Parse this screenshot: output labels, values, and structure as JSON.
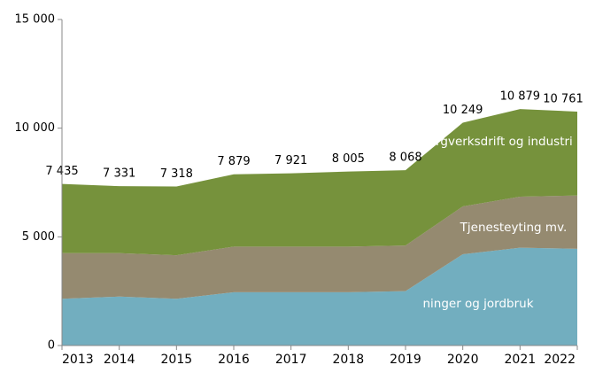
{
  "chart_data": {
    "type": "stacked_area",
    "x": [
      2013,
      2014,
      2015,
      2016,
      2017,
      2018,
      2019,
      2020,
      2021,
      2022
    ],
    "series": [
      {
        "name": "Bergverksdrift og industri mv.",
        "color": "#72aebf",
        "values": [
          2150,
          2250,
          2150,
          2450,
          2450,
          2450,
          2500,
          4200,
          4500,
          4450
        ]
      },
      {
        "name": "Tjenesteyting mv.",
        "color": "#958a70",
        "values": [
          2100,
          2000,
          2000,
          2100,
          2100,
          2100,
          2100,
          2200,
          2350,
          2450
        ]
      },
      {
        "name": "ninger og jordbruk",
        "color": "#76923c",
        "values": [
          3185,
          3081,
          3168,
          3329,
          3371,
          3455,
          3468,
          3849,
          4029,
          3861
        ]
      }
    ],
    "totals": [
      7435,
      7331,
      7318,
      7879,
      7921,
      8005,
      8068,
      10249,
      10879,
      10761
    ],
    "total_labels": [
      "7 435",
      "7 331",
      "7 318",
      "7 879",
      "7 921",
      "8 005",
      "8 068",
      "10 249",
      "10 879",
      "10 761"
    ],
    "xlim": [
      2013,
      2022
    ],
    "xticks": [
      2013,
      2014,
      2015,
      2016,
      2017,
      2018,
      2019,
      2020,
      2021,
      2022
    ],
    "ylim": [
      0,
      15000
    ],
    "yticks": [
      0,
      {
        "value": 5000,
        "label": "5 000"
      },
      {
        "value": 10000,
        "label": "10 000"
      },
      {
        "value": 15000,
        "label": "15 000"
      }
    ]
  }
}
